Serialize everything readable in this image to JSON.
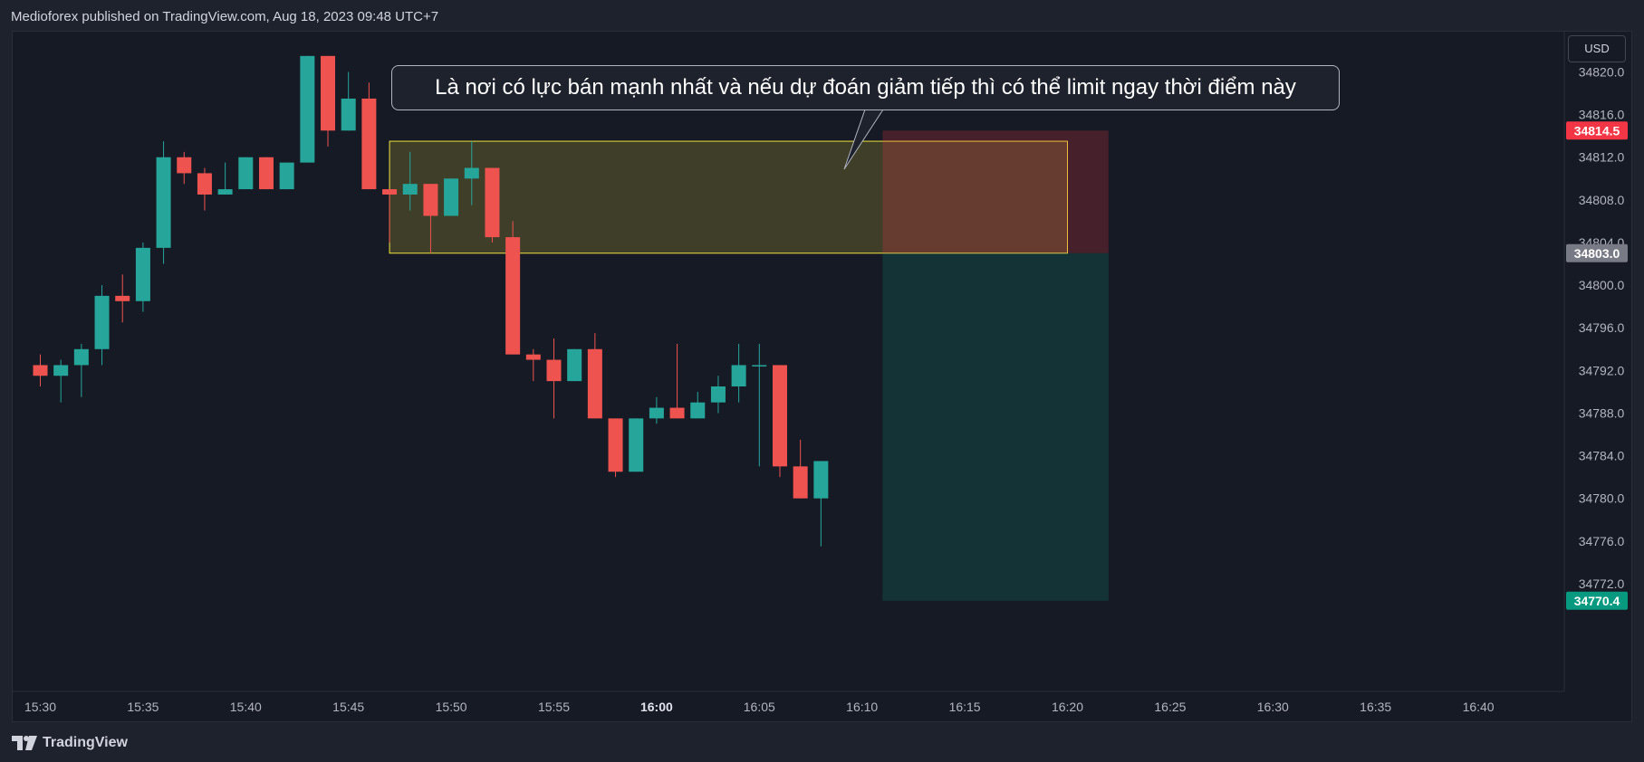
{
  "header": {
    "published_text": "Medioforex published on TradingView.com, Aug 18, 2023 09:48 UTC+7"
  },
  "currency_button": "USD",
  "footer": {
    "brand": "TradingView"
  },
  "annotation": {
    "text": "Là nơi có lực bán mạnh nhất và nếu dự đoán giảm tiếp thì có thể limit ngay thời điểm này"
  },
  "colors": {
    "up": "#26a69a",
    "down": "#ef5350",
    "background": "#161a25",
    "zone_border": "#f2e33d",
    "stop_zone": "#f23645",
    "target_zone": "#089981"
  },
  "chart_data": {
    "type": "candlestick",
    "x_ticks": [
      "15:30",
      "15:35",
      "15:40",
      "15:45",
      "15:50",
      "15:55",
      "16:00",
      "16:05",
      "16:10",
      "16:15",
      "16:20",
      "16:25",
      "16:30",
      "16:35",
      "16:40"
    ],
    "y_ticks": [
      "34820.0",
      "34816.0",
      "34812.0",
      "34808.0",
      "34804.0",
      "34800.0",
      "34796.0",
      "34792.0",
      "34788.0",
      "34784.0",
      "34780.0",
      "34776.0",
      "34772.0"
    ],
    "ylim": [
      34770.4,
      34820.0
    ],
    "price_labels": [
      {
        "value": "34814.5",
        "color": "#f23645"
      },
      {
        "value": "34803.0",
        "color": "#787b86"
      },
      {
        "value": "34770.4",
        "color": "#089981"
      }
    ],
    "candles": [
      {
        "time": "15:30",
        "open": 34792.5,
        "high": 34793.5,
        "low": 34790.5,
        "close": 34791.5
      },
      {
        "time": "15:31",
        "open": 34791.5,
        "high": 34793.0,
        "low": 34789.0,
        "close": 34792.5
      },
      {
        "time": "15:32",
        "open": 34792.5,
        "high": 34794.5,
        "low": 34789.5,
        "close": 34794.0
      },
      {
        "time": "15:33",
        "open": 34794.0,
        "high": 34800.0,
        "low": 34792.5,
        "close": 34799.0
      },
      {
        "time": "15:34",
        "open": 34799.0,
        "high": 34801.0,
        "low": 34796.5,
        "close": 34798.5
      },
      {
        "time": "15:35",
        "open": 34798.5,
        "high": 34804.0,
        "low": 34797.5,
        "close": 34803.5
      },
      {
        "time": "15:36",
        "open": 34803.5,
        "high": 34813.5,
        "low": 34802.0,
        "close": 34812.0
      },
      {
        "time": "15:37",
        "open": 34812.0,
        "high": 34812.5,
        "low": 34809.5,
        "close": 34810.5
      },
      {
        "time": "15:38",
        "open": 34810.5,
        "high": 34811.0,
        "low": 34807.0,
        "close": 34808.5
      },
      {
        "time": "15:39",
        "open": 34808.5,
        "high": 34811.5,
        "low": 34808.5,
        "close": 34809.0
      },
      {
        "time": "15:40",
        "open": 34809.0,
        "high": 34812.0,
        "low": 34809.0,
        "close": 34812.0
      },
      {
        "time": "15:41",
        "open": 34812.0,
        "high": 34812.0,
        "low": 34809.0,
        "close": 34809.0
      },
      {
        "time": "15:42",
        "open": 34809.0,
        "high": 34811.5,
        "low": 34809.0,
        "close": 34811.5
      },
      {
        "time": "15:43",
        "open": 34811.5,
        "high": 34821.5,
        "low": 34811.5,
        "close": 34821.5
      },
      {
        "time": "15:44",
        "open": 34821.5,
        "high": 34821.5,
        "low": 34813.0,
        "close": 34814.5
      },
      {
        "time": "15:45",
        "open": 34814.5,
        "high": 34820.0,
        "low": 34814.5,
        "close": 34817.5
      },
      {
        "time": "15:46",
        "open": 34817.5,
        "high": 34819.0,
        "low": 34809.0,
        "close": 34809.0
      },
      {
        "time": "15:47",
        "open": 34809.0,
        "high": 34809.0,
        "low": 34804.0,
        "close": 34808.5
      },
      {
        "time": "15:48",
        "open": 34808.5,
        "high": 34812.5,
        "low": 34807.0,
        "close": 34809.5
      },
      {
        "time": "15:49",
        "open": 34809.5,
        "high": 34809.5,
        "low": 34803.0,
        "close": 34806.5
      },
      {
        "time": "15:50",
        "open": 34806.5,
        "high": 34810.0,
        "low": 34806.5,
        "close": 34810.0
      },
      {
        "time": "15:51",
        "open": 34810.0,
        "high": 34813.5,
        "low": 34807.5,
        "close": 34811.0
      },
      {
        "time": "15:52",
        "open": 34811.0,
        "high": 34811.0,
        "low": 34804.0,
        "close": 34804.5
      },
      {
        "time": "15:53",
        "open": 34804.5,
        "high": 34806.0,
        "low": 34793.5,
        "close": 34793.5
      },
      {
        "time": "15:54",
        "open": 34793.5,
        "high": 34794.0,
        "low": 34791.0,
        "close": 34793.0
      },
      {
        "time": "15:55",
        "open": 34793.0,
        "high": 34795.0,
        "low": 34787.5,
        "close": 34791.0
      },
      {
        "time": "15:56",
        "open": 34791.0,
        "high": 34794.0,
        "low": 34791.0,
        "close": 34794.0
      },
      {
        "time": "15:57",
        "open": 34794.0,
        "high": 34795.5,
        "low": 34787.5,
        "close": 34787.5
      },
      {
        "time": "15:58",
        "open": 34787.5,
        "high": 34787.5,
        "low": 34782.0,
        "close": 34782.5
      },
      {
        "time": "15:59",
        "open": 34782.5,
        "high": 34787.5,
        "low": 34782.5,
        "close": 34787.5
      },
      {
        "time": "16:00",
        "open": 34787.5,
        "high": 34789.5,
        "low": 34787.0,
        "close": 34788.5
      },
      {
        "time": "16:01",
        "open": 34788.5,
        "high": 34794.5,
        "low": 34787.5,
        "close": 34787.5
      },
      {
        "time": "16:02",
        "open": 34787.5,
        "high": 34790.0,
        "low": 34787.5,
        "close": 34789.0
      },
      {
        "time": "16:03",
        "open": 34789.0,
        "high": 34791.5,
        "low": 34788.0,
        "close": 34790.5
      },
      {
        "time": "16:04",
        "open": 34790.5,
        "high": 34794.5,
        "low": 34789.0,
        "close": 34792.5
      },
      {
        "time": "16:05",
        "open": 34792.5,
        "high": 34794.5,
        "low": 34783.0,
        "close": 34792.5
      },
      {
        "time": "16:06",
        "open": 34792.5,
        "high": 34792.5,
        "low": 34782.0,
        "close": 34783.0
      },
      {
        "time": "16:07",
        "open": 34783.0,
        "high": 34785.5,
        "low": 34780.0,
        "close": 34780.0
      },
      {
        "time": "16:08",
        "open": 34780.0,
        "high": 34783.5,
        "low": 34775.5,
        "close": 34783.5
      }
    ],
    "zones": [
      {
        "name": "supply-zone",
        "from_time": "15:47",
        "to_time": "16:20",
        "top": 34813.5,
        "bottom": 34803.0
      },
      {
        "name": "stop-zone",
        "from_time": "16:11",
        "to_time": "16:22",
        "top": 34814.5,
        "bottom": 34803.0
      },
      {
        "name": "target-zone",
        "from_time": "16:11",
        "to_time": "16:22",
        "top": 34803.0,
        "bottom": 34770.4
      }
    ]
  }
}
